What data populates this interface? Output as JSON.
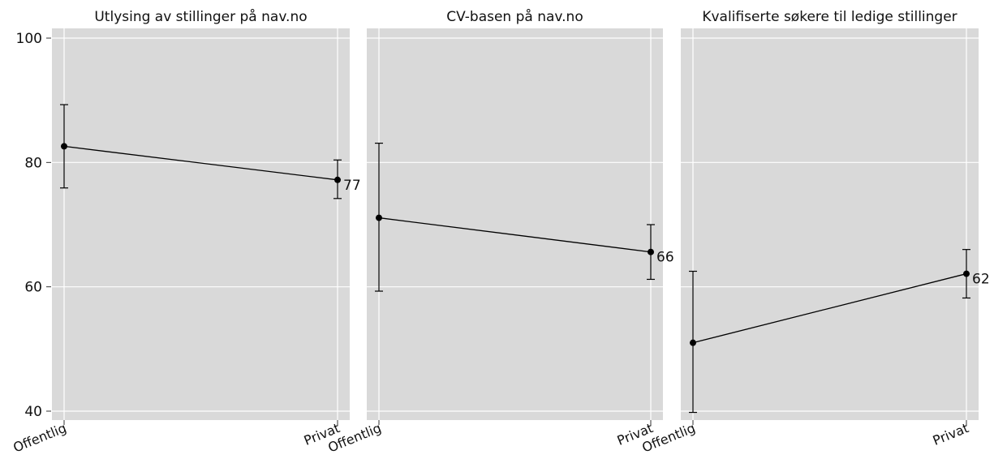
{
  "chart_data": {
    "type": "line",
    "ylim": [
      40,
      100
    ],
    "yticks": [
      40,
      60,
      80,
      100
    ],
    "categories": [
      "Offentlig",
      "Privat"
    ],
    "grid": true,
    "colors": {
      "panel_background": "#d9d9d9",
      "gridline": "#ffffff",
      "line": "#000000",
      "text": "#111111"
    },
    "panels": [
      {
        "title": "Utlysing av stillinger på nav.no",
        "values": [
          82.6,
          77.2
        ],
        "lower": [
          75.9,
          74.2
        ],
        "upper": [
          89.3,
          80.4
        ],
        "labels": [
          "",
          "77"
        ]
      },
      {
        "title": "CV-basen på nav.no",
        "values": [
          71.1,
          65.6
        ],
        "lower": [
          59.3,
          61.2
        ],
        "upper": [
          83.1,
          70.0
        ],
        "labels": [
          "",
          "66"
        ]
      },
      {
        "title": "Kvalifiserte søkere til ledige stillinger",
        "values": [
          51.0,
          62.1
        ],
        "lower": [
          39.8,
          58.2
        ],
        "upper": [
          62.5,
          66.0
        ],
        "labels": [
          "",
          "62"
        ]
      }
    ]
  }
}
